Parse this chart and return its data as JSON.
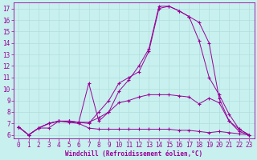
{
  "xlabel": "Windchill (Refroidissement éolien,°C)",
  "bg_color": "#c8f0ee",
  "line_color": "#990099",
  "grid_color": "#b0dede",
  "xlim": [
    -0.5,
    23.5
  ],
  "ylim": [
    5.7,
    17.5
  ],
  "xticks": [
    0,
    1,
    2,
    3,
    4,
    5,
    6,
    7,
    8,
    9,
    10,
    11,
    12,
    13,
    14,
    15,
    16,
    17,
    18,
    19,
    20,
    21,
    22,
    23
  ],
  "yticks": [
    6,
    7,
    8,
    9,
    10,
    11,
    12,
    13,
    14,
    15,
    16,
    17
  ],
  "series": [
    [
      6.7,
      6.0,
      6.6,
      6.6,
      7.2,
      7.1,
      7.0,
      6.6,
      6.5,
      6.5,
      6.5,
      6.5,
      6.5,
      6.5,
      6.5,
      6.5,
      6.4,
      6.4,
      6.3,
      6.2,
      6.3,
      6.2,
      6.1,
      6.0
    ],
    [
      6.7,
      6.0,
      6.6,
      7.0,
      7.2,
      7.2,
      7.1,
      7.1,
      7.5,
      8.0,
      8.8,
      9.0,
      9.3,
      9.5,
      9.5,
      9.5,
      9.4,
      9.3,
      8.7,
      9.2,
      8.8,
      7.2,
      6.5,
      6.0
    ],
    [
      6.7,
      6.0,
      6.6,
      7.0,
      7.2,
      7.2,
      7.1,
      7.0,
      8.0,
      9.0,
      10.5,
      11.0,
      11.5,
      13.3,
      17.0,
      17.2,
      16.8,
      16.3,
      14.2,
      11.0,
      9.5,
      7.8,
      6.5,
      6.0
    ],
    [
      6.7,
      6.0,
      6.6,
      7.0,
      7.2,
      7.2,
      7.1,
      10.5,
      7.2,
      8.0,
      9.8,
      10.8,
      12.0,
      13.5,
      17.2,
      17.2,
      16.8,
      16.3,
      15.8,
      14.0,
      9.2,
      7.2,
      6.3,
      6.0
    ]
  ],
  "tick_fontsize": 5.5,
  "xlabel_fontsize": 5.5
}
